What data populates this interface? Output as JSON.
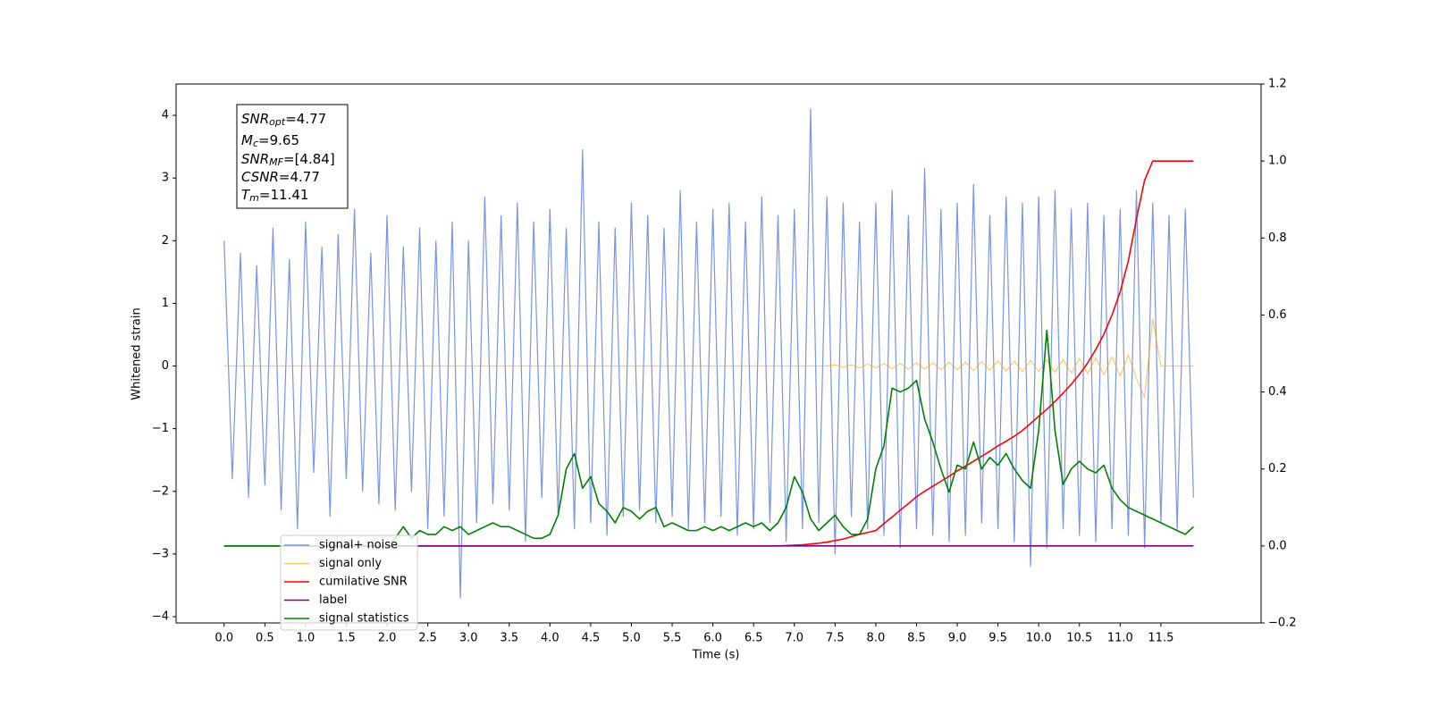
{
  "chart_data": {
    "type": "line",
    "xlabel": "Time (s)",
    "ylabel": "Whitened strain",
    "legend": "lower left",
    "annotation": [
      {
        "symbol": "SNR",
        "sub": "opt",
        "text": "=4.77"
      },
      {
        "symbol": "M",
        "sub": "c",
        "text": "=9.65"
      },
      {
        "symbol": "SNR",
        "sub": "MF",
        "text": "=[4.84]"
      },
      {
        "symbol": "CSNR",
        "text": "=4.77"
      },
      {
        "symbol": "T",
        "sub": "m",
        "text": "=11.41"
      }
    ],
    "xlim": [
      -0.59,
      12.73
    ],
    "ylim": [
      -4.1,
      4.5
    ],
    "y2lim": [
      -0.2,
      1.2
    ],
    "xticks": [
      {
        "value": 0,
        "label": "0.0"
      },
      0.5,
      {
        "value": 1,
        "label": "1.0"
      },
      1.5,
      {
        "value": 2,
        "label": "2.0"
      },
      2.5,
      {
        "value": 3,
        "label": "3.0"
      },
      3.5,
      {
        "value": 4,
        "label": "4.0"
      },
      4.5,
      {
        "value": 5,
        "label": "5.0"
      },
      5.5,
      {
        "value": 6,
        "label": "6.0"
      },
      6.5,
      {
        "value": 7,
        "label": "7.0"
      },
      7.5,
      {
        "value": 8,
        "label": "8.0"
      },
      8.5,
      {
        "value": 9,
        "label": "9.0"
      },
      9.5,
      {
        "value": 10,
        "label": "10.0"
      },
      10.5,
      {
        "value": 11,
        "label": "11.0"
      },
      11.5
    ],
    "yticks": [
      {
        "value": -4,
        "label": "−4"
      },
      {
        "value": -3,
        "label": "−3"
      },
      {
        "value": -2,
        "label": "−2"
      },
      {
        "value": -1,
        "label": "−1"
      },
      0,
      1,
      2,
      3,
      4
    ],
    "y2ticks": [
      {
        "value": -0.2,
        "label": "−0.2"
      },
      {
        "value": 0,
        "label": "0.0"
      },
      0.2,
      0.4,
      0.6,
      0.8,
      {
        "value": 1,
        "label": "1.0"
      },
      1.2
    ],
    "x": [
      0,
      0.1,
      0.2,
      0.3,
      0.4,
      0.5,
      0.6,
      0.7,
      0.8,
      0.9,
      1,
      1.1,
      1.2,
      1.3,
      1.4,
      1.5,
      1.6,
      1.7,
      1.8,
      1.9,
      2,
      2.1,
      2.2,
      2.3,
      2.4,
      2.5,
      2.6,
      2.7,
      2.8,
      2.9,
      3,
      3.1,
      3.2,
      3.3,
      3.4,
      3.5,
      3.6,
      3.7,
      3.8,
      3.9,
      4,
      4.1,
      4.2,
      4.3,
      4.4,
      4.5,
      4.6,
      4.7,
      4.8,
      4.9,
      5,
      5.1,
      5.2,
      5.3,
      5.4,
      5.5,
      5.6,
      5.7,
      5.8,
      5.9,
      6,
      6.1,
      6.2,
      6.3,
      6.4,
      6.5,
      6.6,
      6.7,
      6.8,
      6.9,
      7,
      7.1,
      7.2,
      7.3,
      7.4,
      7.5,
      7.6,
      7.7,
      7.8,
      7.9,
      8,
      8.1,
      8.2,
      8.3,
      8.4,
      8.5,
      8.6,
      8.7,
      8.8,
      8.9,
      9,
      9.1,
      9.2,
      9.3,
      9.4,
      9.5,
      9.6,
      9.7,
      9.8,
      9.9,
      10,
      10.1,
      10.2,
      10.3,
      10.4,
      10.5,
      10.6,
      10.7,
      10.8,
      10.9,
      11,
      11.1,
      11.2,
      11.3,
      11.4,
      11.5,
      11.6,
      11.7,
      11.8,
      11.9
    ],
    "series": [
      {
        "name": "signal+ noise",
        "color": "#7893e8",
        "values": [
          2.0,
          -1.8,
          1.8,
          -2.1,
          1.6,
          -1.9,
          2.2,
          -2.3,
          1.7,
          -2.6,
          2.3,
          -1.7,
          1.9,
          -2.4,
          2.1,
          -1.8,
          2.5,
          -2.0,
          1.8,
          -2.2,
          2.4,
          -2.3,
          1.9,
          -2.0,
          2.2,
          -2.6,
          2.0,
          -2.4,
          2.3,
          -3.7,
          2.0,
          -2.5,
          2.7,
          -2.2,
          2.4,
          -2.3,
          2.6,
          -2.8,
          2.3,
          -2.1,
          2.5,
          -2.4,
          2.2,
          -2.6,
          3.45,
          -2.5,
          2.3,
          -2.7,
          2.2,
          -2.4,
          2.6,
          -2.3,
          2.4,
          -2.5,
          2.2,
          -2.4,
          2.8,
          -2.6,
          2.3,
          -2.5,
          2.5,
          -2.4,
          2.6,
          -2.7,
          2.3,
          -2.6,
          2.7,
          -2.5,
          2.4,
          -2.8,
          2.5,
          -2.6,
          4.1,
          -2.5,
          2.7,
          -3.0,
          2.6,
          -2.4,
          2.3,
          -2.6,
          2.6,
          -2.7,
          2.8,
          -2.9,
          2.4,
          -2.6,
          3.15,
          -2.7,
          2.5,
          -2.8,
          2.6,
          -2.7,
          2.9,
          -2.5,
          2.4,
          -2.6,
          2.7,
          -2.8,
          2.6,
          -3.2,
          2.7,
          -2.9,
          2.8,
          -2.6,
          2.5,
          -2.7,
          2.6,
          -2.8,
          2.4,
          -2.6,
          2.5,
          -2.7,
          2.8,
          -2.9,
          2.6,
          -2.5,
          2.4,
          -2.6,
          2.5,
          -2.1
        ]
      },
      {
        "name": "signal only",
        "color": "#ffa500",
        "values": [
          0,
          0,
          0,
          0,
          0,
          0,
          0,
          0,
          0,
          0,
          0,
          0,
          0,
          0,
          0,
          0,
          0,
          0,
          0,
          0,
          0,
          0,
          0,
          0,
          0,
          0,
          0,
          0,
          0,
          0,
          0,
          0,
          0,
          0,
          0,
          0,
          0,
          0,
          0,
          0,
          0,
          0,
          0,
          0,
          0,
          0,
          0,
          0,
          0,
          0,
          0,
          0,
          0,
          0,
          0,
          0,
          0,
          0,
          0,
          0,
          0,
          0,
          0,
          0,
          0,
          0,
          0,
          0,
          0,
          0,
          0,
          0,
          0,
          0,
          0,
          0.02,
          -0.02,
          0.02,
          -0.03,
          0.03,
          -0.03,
          0.04,
          -0.04,
          0.04,
          -0.05,
          0.05,
          -0.05,
          0.05,
          -0.06,
          0.06,
          -0.06,
          0.06,
          -0.07,
          0.07,
          -0.07,
          0.08,
          -0.08,
          0.08,
          -0.09,
          0.09,
          -0.09,
          0.1,
          -0.1,
          0.1,
          -0.11,
          0.12,
          -0.12,
          0.13,
          -0.14,
          0.15,
          -0.16,
          0.18,
          -0.2,
          -0.5,
          0.75,
          0,
          0,
          0,
          0,
          0
        ]
      },
      {
        "name": "cumilative SNR",
        "color": "#ff0000",
        "axis": "y2",
        "values": [
          0,
          0,
          0,
          0,
          0,
          0,
          0,
          0,
          0,
          0,
          0,
          0,
          0,
          0,
          0,
          0,
          0,
          0,
          0,
          0,
          0,
          0,
          0,
          0,
          0,
          0,
          0,
          0,
          0,
          0,
          0,
          0,
          0,
          0,
          0,
          0,
          0,
          0,
          0,
          0,
          0,
          0,
          0,
          0,
          0,
          0,
          0,
          0,
          0,
          0,
          0,
          0,
          0,
          0,
          0,
          0,
          0,
          0,
          0,
          0,
          0,
          0,
          0,
          0,
          0,
          0,
          0,
          0,
          0,
          0.001,
          0.002,
          0.003,
          0.005,
          0.007,
          0.01,
          0.014,
          0.018,
          0.024,
          0.03,
          0.035,
          0.04,
          0.058,
          0.075,
          0.093,
          0.11,
          0.128,
          0.142,
          0.155,
          0.168,
          0.181,
          0.195,
          0.207,
          0.22,
          0.233,
          0.246,
          0.26,
          0.272,
          0.285,
          0.3,
          0.318,
          0.337,
          0.355,
          0.375,
          0.397,
          0.42,
          0.446,
          0.475,
          0.51,
          0.55,
          0.6,
          0.66,
          0.74,
          0.85,
          0.95,
          1.0,
          1.0,
          1.0,
          1.0,
          1.0,
          1.0
        ]
      },
      {
        "name": "label",
        "color": "#800080",
        "axis": "y2",
        "values": [
          0,
          0,
          0,
          0,
          0,
          0,
          0,
          0,
          0,
          0,
          0,
          0,
          0,
          0,
          0,
          0,
          0,
          0,
          0,
          0,
          0,
          0,
          0,
          0,
          0,
          0,
          0,
          0,
          0,
          0,
          0,
          0,
          0,
          0,
          0,
          0,
          0,
          0,
          0,
          0,
          0,
          0,
          0,
          0,
          0,
          0,
          0,
          0,
          0,
          0,
          0,
          0,
          0,
          0,
          0,
          0,
          0,
          0,
          0,
          0,
          0,
          0,
          0,
          0,
          0,
          0,
          0,
          0,
          0,
          0,
          0,
          0,
          0,
          0,
          0,
          0,
          0,
          0,
          0,
          0,
          0,
          0,
          0,
          0,
          0,
          0,
          0,
          0,
          0,
          0,
          0,
          0,
          0,
          0,
          0,
          0,
          0,
          0,
          0,
          0,
          0,
          0,
          0,
          0,
          0,
          0,
          0,
          0,
          0,
          0,
          0,
          0,
          0,
          0,
          0,
          0,
          0,
          0,
          0,
          0
        ]
      },
      {
        "name": "signal statistics",
        "color": "#008000",
        "axis": "y2",
        "values": [
          0,
          0,
          0,
          0,
          0,
          0,
          0,
          0,
          0,
          0,
          0,
          0,
          0,
          0,
          0,
          0,
          0,
          0,
          0,
          0,
          0,
          0.02,
          0.05,
          0.02,
          0.04,
          0.03,
          0.03,
          0.05,
          0.04,
          0.05,
          0.03,
          0.04,
          0.05,
          0.06,
          0.05,
          0.05,
          0.04,
          0.03,
          0.02,
          0.02,
          0.03,
          0.08,
          0.2,
          0.24,
          0.15,
          0.18,
          0.11,
          0.09,
          0.06,
          0.1,
          0.09,
          0.07,
          0.09,
          0.1,
          0.05,
          0.06,
          0.05,
          0.04,
          0.04,
          0.05,
          0.04,
          0.05,
          0.04,
          0.05,
          0.06,
          0.05,
          0.06,
          0.04,
          0.06,
          0.1,
          0.18,
          0.14,
          0.07,
          0.04,
          0.06,
          0.08,
          0.05,
          0.03,
          0.03,
          0.07,
          0.2,
          0.26,
          0.41,
          0.4,
          0.41,
          0.43,
          0.33,
          0.27,
          0.2,
          0.14,
          0.21,
          0.2,
          0.27,
          0.2,
          0.23,
          0.21,
          0.24,
          0.2,
          0.17,
          0.15,
          0.3,
          0.56,
          0.3,
          0.16,
          0.2,
          0.22,
          0.2,
          0.19,
          0.21,
          0.15,
          0.12,
          0.1,
          0.09,
          0.08,
          0.07,
          0.06,
          0.05,
          0.04,
          0.03,
          0.05
        ]
      }
    ]
  }
}
